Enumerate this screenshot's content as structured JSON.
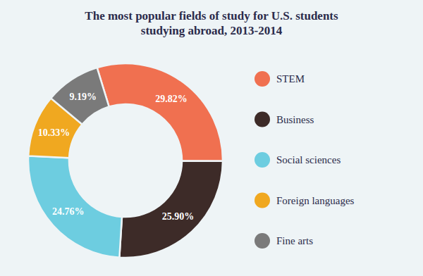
{
  "chart_data": {
    "type": "donut",
    "title": "The most popular fields of study for U.S. students\nstudying abroad, 2013-2014",
    "categories": [
      "STEM",
      "Business",
      "Social sciences",
      "Foreign languages",
      "Fine arts"
    ],
    "values": [
      29.82,
      25.9,
      24.76,
      10.33,
      9.19
    ],
    "value_labels": [
      "29.82%",
      "25.90%",
      "24.76%",
      "10.33%",
      "9.19%"
    ],
    "colors": [
      "#f07050",
      "#3d2b28",
      "#6dcde0",
      "#f0a820",
      "#7a7a7a"
    ],
    "data_labels": true,
    "legend": "right"
  }
}
